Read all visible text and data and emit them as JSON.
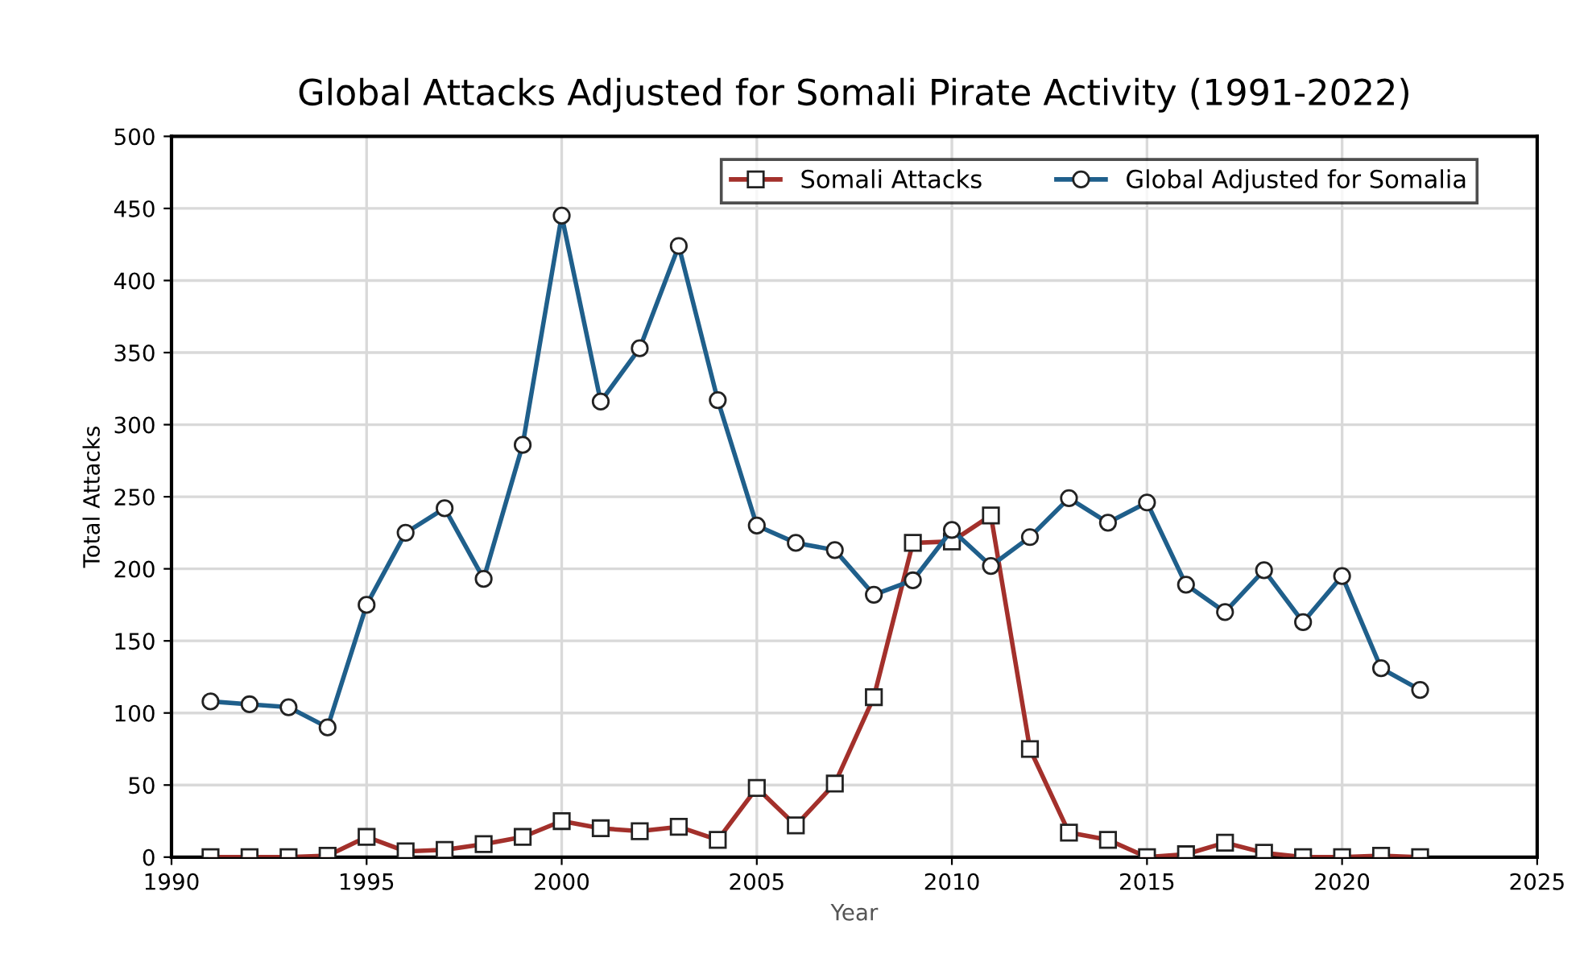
{
  "chart_data": {
    "type": "line",
    "title": "Global Attacks Adjusted for Somali Pirate Activity (1991-2022)",
    "xlabel": "Year",
    "ylabel": "Total Attacks",
    "x": [
      1991,
      1992,
      1993,
      1994,
      1995,
      1996,
      1997,
      1998,
      1999,
      2000,
      2001,
      2002,
      2003,
      2004,
      2005,
      2006,
      2007,
      2008,
      2009,
      2010,
      2011,
      2012,
      2013,
      2014,
      2015,
      2016,
      2017,
      2018,
      2019,
      2020,
      2021,
      2022
    ],
    "series": [
      {
        "name": "Somali Attacks",
        "color": "#a3302b",
        "marker": "square",
        "values": [
          0,
          0,
          0,
          1,
          14,
          4,
          5,
          9,
          14,
          25,
          20,
          18,
          21,
          12,
          48,
          22,
          51,
          111,
          218,
          219,
          237,
          75,
          17,
          12,
          0,
          2,
          10,
          3,
          0,
          0,
          1,
          0
        ]
      },
      {
        "name": "Global Adjusted for Somalia",
        "color": "#1f5f8b",
        "marker": "circle",
        "values": [
          108,
          106,
          104,
          90,
          175,
          225,
          242,
          193,
          286,
          445,
          316,
          353,
          424,
          317,
          230,
          218,
          213,
          182,
          192,
          227,
          202,
          222,
          249,
          232,
          246,
          189,
          170,
          199,
          163,
          195,
          131,
          116
        ]
      }
    ],
    "xlim": [
      1990,
      2025
    ],
    "xticks": [
      1990,
      1995,
      2000,
      2005,
      2010,
      2015,
      2020,
      2025
    ],
    "ylim": [
      0,
      500
    ],
    "yticks": [
      0,
      50,
      100,
      150,
      200,
      250,
      300,
      350,
      400,
      450,
      500
    ],
    "grid": true,
    "legend": "top right",
    "line_style": "solid"
  }
}
